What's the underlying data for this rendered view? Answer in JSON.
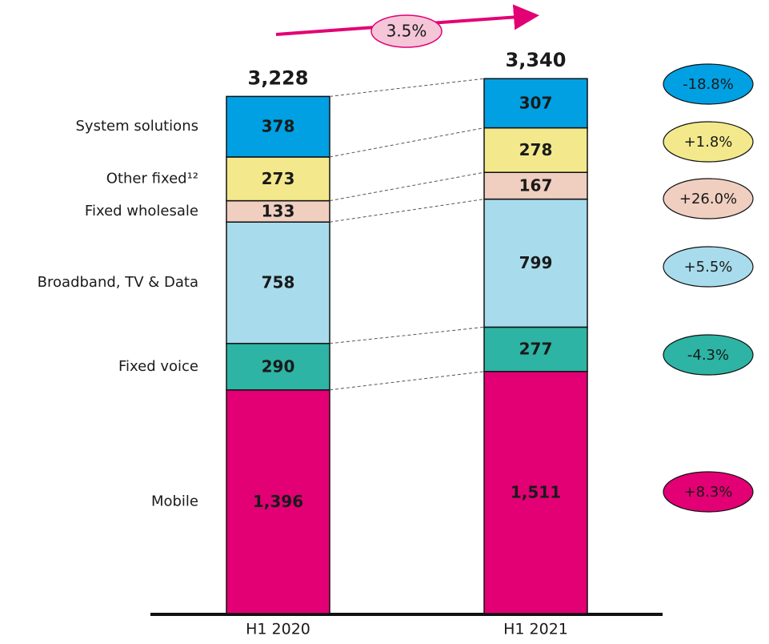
{
  "chart_data": {
    "type": "stacked_bar",
    "categories": [
      "H1 2020",
      "H1 2021"
    ],
    "series": [
      {
        "name": "Mobile",
        "color": "#e20074",
        "values": [
          1396,
          1511
        ],
        "value_labels": [
          "1,396",
          "1,511"
        ]
      },
      {
        "name": "Fixed voice",
        "color": "#2db4a4",
        "values": [
          290,
          277
        ]
      },
      {
        "name": "Broadband, TV & Data",
        "color": "#a8dcec",
        "values": [
          758,
          799
        ]
      },
      {
        "name": "Fixed wholesale",
        "color": "#f0cfc0",
        "values": [
          133,
          167
        ]
      },
      {
        "name": "Other fixed¹²",
        "color": "#f3e98c",
        "values": [
          273,
          278
        ]
      },
      {
        "name": "System solutions",
        "color": "#00a0e3",
        "values": [
          378,
          307
        ]
      }
    ],
    "totals": [
      3228,
      3340
    ],
    "total_labels": [
      "3,228",
      "3,340"
    ],
    "changes": [
      8.3,
      -4.3,
      5.5,
      26.0,
      1.8,
      -18.8
    ],
    "change_labels": [
      "+8.3%",
      "-4.3%",
      "+5.5%",
      "+26.0%",
      "+1.8%",
      "-18.8%"
    ],
    "growth": 3.5,
    "growth_label": "3.5%"
  }
}
